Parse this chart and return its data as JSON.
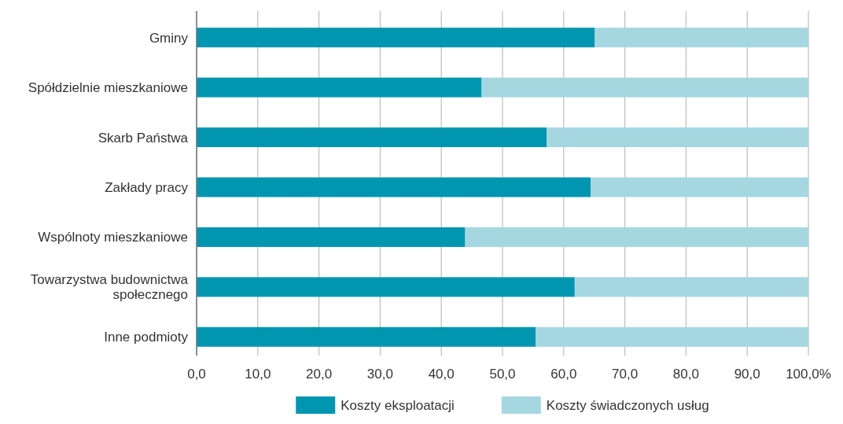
{
  "chart_data": {
    "type": "bar",
    "orientation": "horizontal",
    "stacked": true,
    "categories": [
      "Gminy",
      "Spółdzielnie mieszkaniowe",
      "Skarb Państwa",
      "Zakłady pracy",
      "Wspólnoty mieszkaniowe",
      "Towarzystwa budownictwa społecznego",
      "Inne podmioty"
    ],
    "series": [
      {
        "name": "Koszty eksploatacji",
        "color": "#0096b0",
        "values": [
          65.1,
          46.6,
          57.2,
          64.4,
          43.9,
          61.8,
          55.4
        ]
      },
      {
        "name": "Koszty świadczonych usług",
        "color": "#a5d7e1",
        "values": [
          34.9,
          53.4,
          42.8,
          35.6,
          56.1,
          38.2,
          44.6
        ]
      }
    ],
    "xlim": [
      0,
      100
    ],
    "xticks": [
      {
        "value": 0,
        "label": "0,0"
      },
      {
        "value": 10,
        "label": "10,0"
      },
      {
        "value": 20,
        "label": "20,0"
      },
      {
        "value": 30,
        "label": "30,0"
      },
      {
        "value": 40,
        "label": "40,0"
      },
      {
        "value": 50,
        "label": "50,0"
      },
      {
        "value": 60,
        "label": "60,0"
      },
      {
        "value": 70,
        "label": "70,0"
      },
      {
        "value": 80,
        "label": "80,0"
      },
      {
        "value": 90,
        "label": "90,0"
      },
      {
        "value": 100,
        "label": "100,0%"
      }
    ],
    "grid": "x",
    "legend": "bottom"
  }
}
